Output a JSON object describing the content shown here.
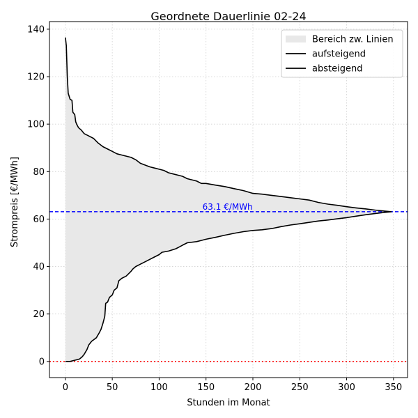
{
  "chart_data": {
    "type": "area",
    "title": "Geordnete Dauerlinie 02-24",
    "xlabel": "Stunden im Monat",
    "ylabel": "Strompreis [€/MWh]",
    "xlim": [
      -17,
      365
    ],
    "ylim": [
      -6.8,
      143.2
    ],
    "xticks": [
      0,
      50,
      100,
      150,
      200,
      250,
      300,
      350
    ],
    "yticks": [
      0,
      20,
      40,
      60,
      80,
      100,
      120,
      140
    ],
    "grid": true,
    "legend_position": "top-right",
    "legend": [
      {
        "label": "Bereich zw. Linien",
        "kind": "fill"
      },
      {
        "label": "aufsteigend",
        "kind": "line"
      },
      {
        "label": "absteigend",
        "kind": "line"
      }
    ],
    "series": [
      {
        "name": "absteigend",
        "color": "#000000",
        "points": [
          [
            0,
            136.5
          ],
          [
            1,
            133
          ],
          [
            2,
            120
          ],
          [
            3,
            113
          ],
          [
            5,
            110.5
          ],
          [
            7,
            110
          ],
          [
            8,
            105
          ],
          [
            10,
            104
          ],
          [
            11,
            101
          ],
          [
            12,
            100
          ],
          [
            14,
            98.5
          ],
          [
            17,
            97.5
          ],
          [
            20,
            96
          ],
          [
            25,
            95
          ],
          [
            30,
            94
          ],
          [
            35,
            92
          ],
          [
            40,
            90.5
          ],
          [
            45,
            89.5
          ],
          [
            50,
            88.5
          ],
          [
            55,
            87.5
          ],
          [
            60,
            87
          ],
          [
            70,
            86
          ],
          [
            75,
            85
          ],
          [
            80,
            83.5
          ],
          [
            90,
            82
          ],
          [
            95,
            81.5
          ],
          [
            100,
            81
          ],
          [
            105,
            80.5
          ],
          [
            110,
            79.5
          ],
          [
            115,
            79
          ],
          [
            120,
            78.5
          ],
          [
            125,
            78
          ],
          [
            130,
            77
          ],
          [
            140,
            76
          ],
          [
            145,
            75
          ],
          [
            150,
            75
          ],
          [
            160,
            74.3
          ],
          [
            170,
            73.7
          ],
          [
            180,
            72.8
          ],
          [
            190,
            72
          ],
          [
            200,
            70.8
          ],
          [
            210,
            70.5
          ],
          [
            220,
            70
          ],
          [
            230,
            69.5
          ],
          [
            240,
            69
          ],
          [
            250,
            68.5
          ],
          [
            260,
            68
          ],
          [
            270,
            67
          ],
          [
            280,
            66.3
          ],
          [
            290,
            65.8
          ],
          [
            300,
            65.2
          ],
          [
            310,
            64.7
          ],
          [
            320,
            64.3
          ],
          [
            330,
            63.8
          ],
          [
            340,
            63.4
          ],
          [
            348,
            63.1
          ]
        ]
      },
      {
        "name": "aufsteigend",
        "color": "#000000",
        "points": [
          [
            0,
            0
          ],
          [
            5,
            0
          ],
          [
            10,
            0.5
          ],
          [
            15,
            1
          ],
          [
            18,
            2
          ],
          [
            20,
            3
          ],
          [
            23,
            5
          ],
          [
            25,
            7
          ],
          [
            28,
            8.5
          ],
          [
            33,
            10
          ],
          [
            36,
            12
          ],
          [
            38,
            13.5
          ],
          [
            40,
            16
          ],
          [
            42,
            19
          ],
          [
            43,
            24.5
          ],
          [
            45,
            25
          ],
          [
            47,
            27
          ],
          [
            50,
            28
          ],
          [
            52,
            30
          ],
          [
            55,
            31
          ],
          [
            57,
            34
          ],
          [
            60,
            35
          ],
          [
            65,
            36
          ],
          [
            70,
            38
          ],
          [
            72,
            39
          ],
          [
            75,
            40
          ],
          [
            80,
            41
          ],
          [
            85,
            42
          ],
          [
            90,
            43
          ],
          [
            95,
            44
          ],
          [
            100,
            45
          ],
          [
            103,
            46
          ],
          [
            110,
            46.5
          ],
          [
            118,
            47.5
          ],
          [
            125,
            49
          ],
          [
            130,
            50
          ],
          [
            140,
            50.5
          ],
          [
            145,
            51
          ],
          [
            150,
            51.5
          ],
          [
            160,
            52.3
          ],
          [
            170,
            53.2
          ],
          [
            180,
            54
          ],
          [
            190,
            54.7
          ],
          [
            200,
            55.2
          ],
          [
            210,
            55.5
          ],
          [
            220,
            56
          ],
          [
            230,
            56.8
          ],
          [
            240,
            57.5
          ],
          [
            250,
            58
          ],
          [
            260,
            58.6
          ],
          [
            270,
            59.2
          ],
          [
            280,
            59.6
          ],
          [
            290,
            60.1
          ],
          [
            300,
            60.6
          ],
          [
            310,
            61.2
          ],
          [
            320,
            61.8
          ],
          [
            330,
            62.3
          ],
          [
            340,
            62.8
          ],
          [
            348,
            63.1
          ]
        ]
      }
    ],
    "reference_lines": [
      {
        "y": 63.1,
        "color": "#0000ff",
        "style": "dashed",
        "label": "63.1 €/MWh",
        "label_x": 173
      },
      {
        "y": 0,
        "color": "#ff0000",
        "style": "dotted"
      }
    ],
    "fill_color": "#e8e8e8"
  }
}
